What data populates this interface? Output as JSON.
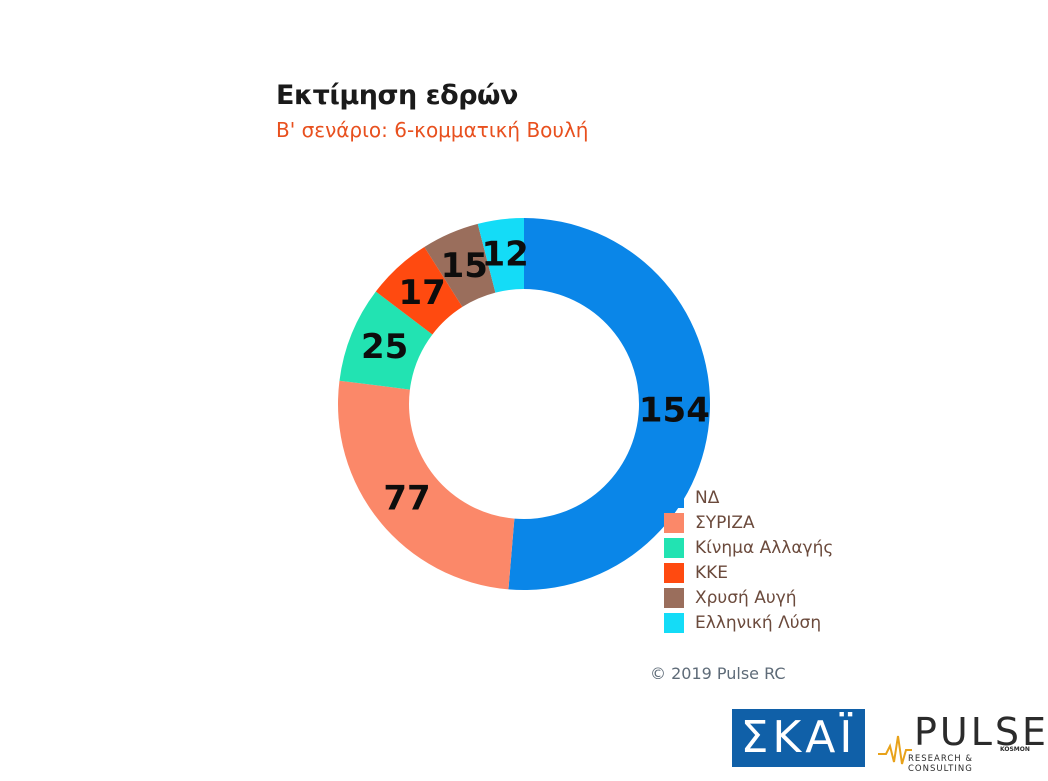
{
  "header": {
    "title": "Εκτίμηση εδρών",
    "subtitle": "Β' σενάριο: 6-κομματική Βουλή"
  },
  "chart_data": {
    "type": "pie",
    "donut": true,
    "title": "Εκτίμηση εδρών",
    "subtitle": "Β' σενάριο: 6-κομματική Βουλή",
    "series": [
      {
        "name": "ΝΔ",
        "value": 154,
        "color": "#0a86e8"
      },
      {
        "name": "ΣΥΡΙΖΑ",
        "value": 77,
        "color": "#fb8869"
      },
      {
        "name": "Κίνημα Αλλαγής",
        "value": 25,
        "color": "#22e3b2"
      },
      {
        "name": "ΚΚΕ",
        "value": 17,
        "color": "#ff4a10"
      },
      {
        "name": "Χρυσή Αυγή",
        "value": 15,
        "color": "#9a6e5c"
      },
      {
        "name": "Ελληνική Λύση",
        "value": 12,
        "color": "#14dcf7"
      }
    ],
    "legend_position": "bottom-right"
  },
  "footer": {
    "copyright": "© 2019 Pulse RC"
  },
  "logos": {
    "skai": "ΣΚΑΪ",
    "pulse": "PULSE",
    "pulse_subtitle": "RESEARCH & CONSULTING",
    "pulse_kosmon": "KOSMON"
  }
}
